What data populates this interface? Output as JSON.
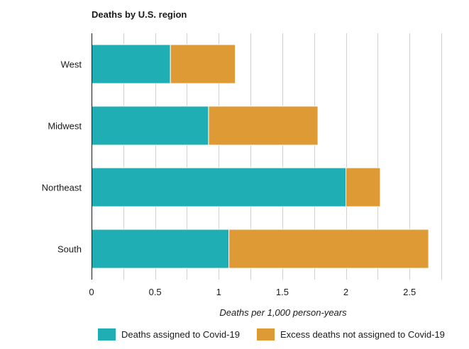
{
  "chart_data": {
    "type": "bar",
    "orientation": "horizontal",
    "stacked": true,
    "title": "Deaths by U.S. region",
    "xlabel": "Deaths per 1,000 person-years",
    "ylabel": "",
    "categories": [
      "West",
      "Midwest",
      "Northeast",
      "South"
    ],
    "series": [
      {
        "name": "Deaths assigned to Covid-19",
        "color": "#20aeb5",
        "values": [
          0.62,
          0.92,
          2.0,
          1.08
        ]
      },
      {
        "name": "Excess deaths not assigned to Covid-19",
        "color": "#dd9a35",
        "values": [
          0.51,
          0.86,
          0.27,
          1.57
        ]
      }
    ],
    "xlim": [
      0,
      2.75
    ],
    "xticks": [
      0,
      0.5,
      1,
      1.5,
      2,
      2.5
    ],
    "xtick_labels": [
      "0",
      "0.5",
      "1",
      "1.5",
      "2",
      "2.5"
    ],
    "grid": "vertical",
    "legend_position": "bottom"
  }
}
